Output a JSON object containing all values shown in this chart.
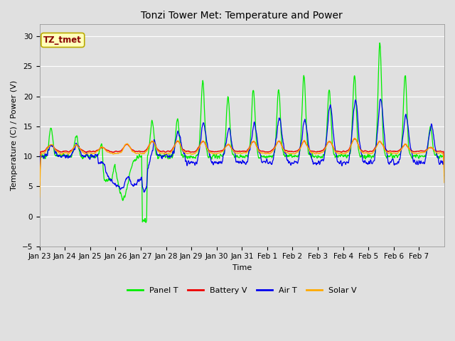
{
  "title": "Tonzi Tower Met: Temperature and Power",
  "xlabel": "Time",
  "ylabel": "Temperature (C) / Power (V)",
  "ylim": [
    -5,
    32
  ],
  "yticks": [
    -5,
    0,
    5,
    10,
    15,
    20,
    25,
    30
  ],
  "xtick_labels": [
    "Jan 23",
    "Jan 24",
    "Jan 25",
    "Jan 26",
    "Jan 27",
    "Jan 28",
    "Jan 29",
    "Jan 30",
    "Jan 31",
    "Feb 1",
    "Feb 2",
    "Feb 3",
    "Feb 4",
    "Feb 5",
    "Feb 6",
    "Feb 7"
  ],
  "bg_color": "#e0e0e0",
  "plot_bg_color": "#e0e0e0",
  "grid_color": "#ffffff",
  "colors": {
    "Panel T": "#00ee00",
    "Battery V": "#ee0000",
    "Air T": "#0000ee",
    "Solar V": "#ffaa00"
  },
  "annotation_text": "TZ_tmet",
  "annotation_bg": "#ffffbb",
  "annotation_border": "#bbaa00",
  "title_fontsize": 10,
  "axis_fontsize": 8,
  "tick_fontsize": 7.5,
  "legend_fontsize": 8
}
